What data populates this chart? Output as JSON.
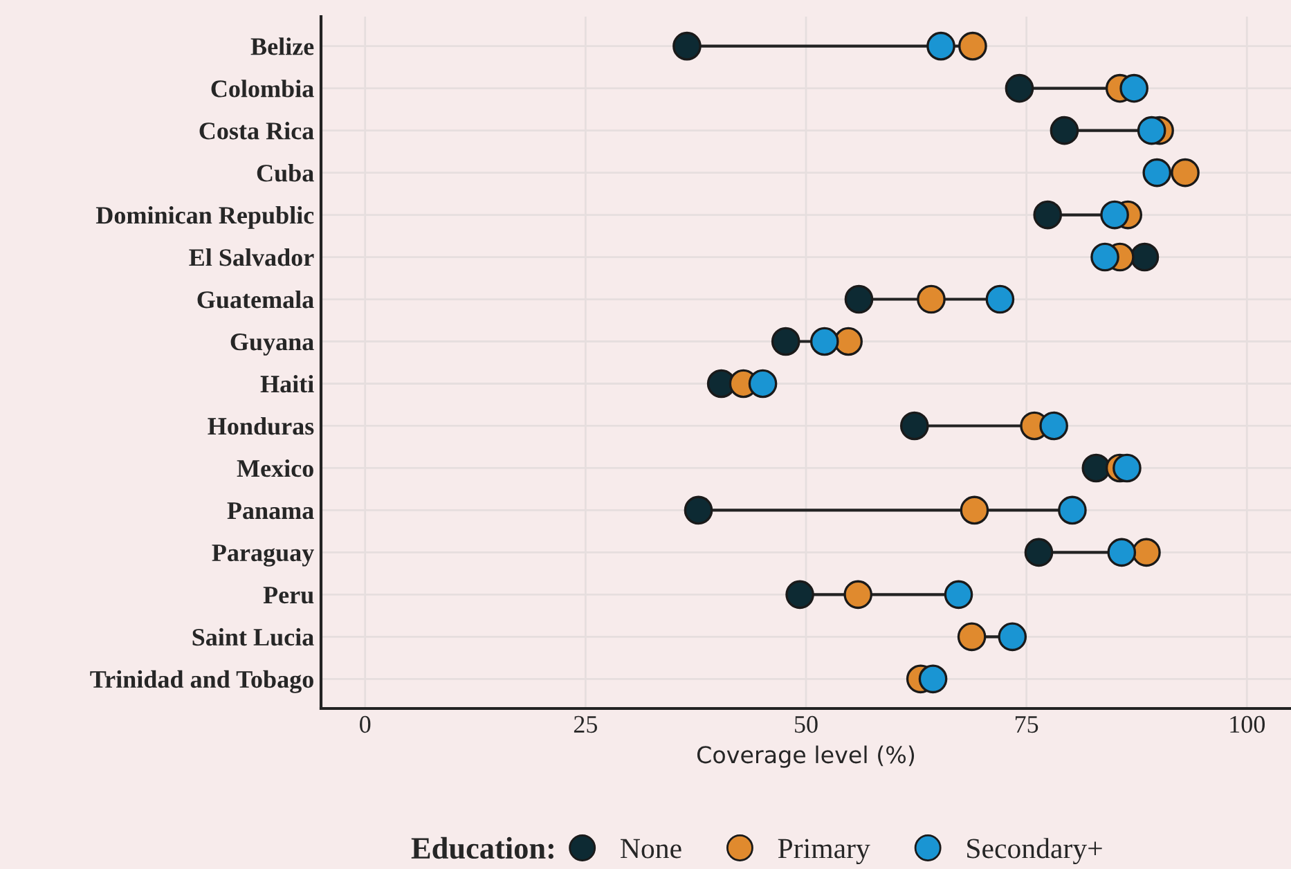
{
  "chart_data": {
    "type": "scatter",
    "orientation": "horizontal",
    "xlabel": "Coverage level (%)",
    "legend_title": "Education:",
    "categories": [
      "Belize",
      "Colombia",
      "Costa Rica",
      "Cuba",
      "Dominican Republic",
      "El Salvador",
      "Guatemala",
      "Guyana",
      "Haiti",
      "Honduras",
      "Mexico",
      "Panama",
      "Paraguay",
      "Peru",
      "Saint Lucia",
      "Trinidad and Tobago"
    ],
    "series": [
      {
        "name": "None",
        "color": "#0d2a33",
        "values": [
          36.5,
          74.2,
          79.3,
          null,
          77.4,
          88.4,
          56.0,
          47.7,
          40.4,
          62.3,
          82.9,
          37.8,
          76.4,
          49.3,
          null,
          null
        ]
      },
      {
        "name": "Primary",
        "color": "#e08a2e",
        "values": [
          68.9,
          85.6,
          90.1,
          93.0,
          86.5,
          85.6,
          64.2,
          54.8,
          42.9,
          75.9,
          85.6,
          69.1,
          88.6,
          55.9,
          68.8,
          63.0
        ]
      },
      {
        "name": "Secondary+",
        "color": "#1a95d3",
        "values": [
          65.3,
          87.2,
          89.2,
          89.8,
          85.0,
          83.9,
          72.0,
          52.1,
          45.1,
          78.1,
          86.4,
          80.2,
          85.8,
          67.3,
          73.4,
          64.4
        ]
      }
    ],
    "xlim": [
      -5,
      105
    ],
    "xticks": [
      0,
      25,
      50,
      75,
      100
    ],
    "grid": true,
    "legend": "bottom",
    "marker": "circle"
  }
}
